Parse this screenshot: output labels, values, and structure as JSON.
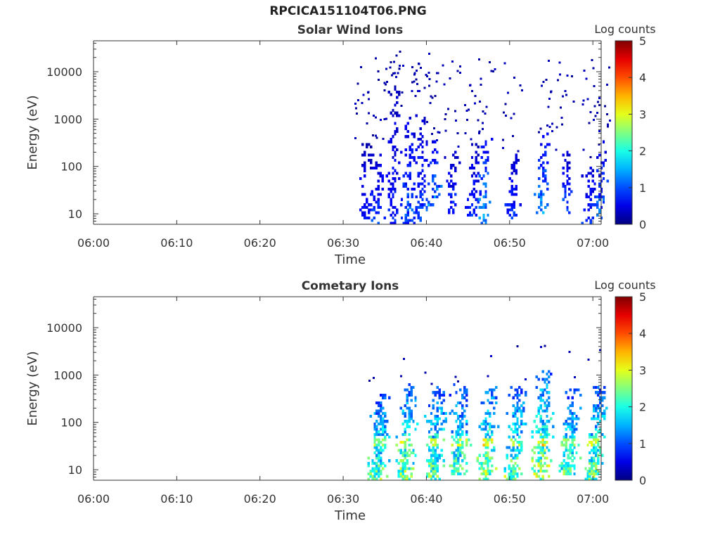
{
  "page_title": "RPCICA151104T06.PNG",
  "chart_data": [
    {
      "type": "heatmap",
      "title": "Solar Wind Ions",
      "xlabel": "Time",
      "ylabel": "Energy (eV)",
      "x_ticks": [
        "06:00",
        "06:10",
        "06:20",
        "06:30",
        "06:40",
        "06:50",
        "07:00"
      ],
      "x_range_min": [
        0,
        61
      ],
      "y_scale": "log",
      "y_ticks": [
        10,
        100,
        1000,
        10000
      ],
      "y_tick_labels": [
        "10",
        "100",
        "1000",
        "10000"
      ],
      "y_range": [
        6,
        45000
      ],
      "colorbar": {
        "label": "Log counts",
        "ticks": [
          0,
          1,
          2,
          3,
          4,
          5
        ],
        "range": [
          0,
          5
        ],
        "colormap": "jet"
      },
      "grid": false,
      "bursts": [
        {
          "t": 32.6,
          "e_lo": 8,
          "e_hi": 300,
          "peak": 0.7
        },
        {
          "t": 34.0,
          "e_lo": 6,
          "e_hi": 200,
          "peak": 1.0
        },
        {
          "t": 36.0,
          "e_lo": 6,
          "e_hi": 5000,
          "peak": 0.8
        },
        {
          "t": 37.8,
          "e_lo": 6,
          "e_hi": 1500,
          "peak": 1.1
        },
        {
          "t": 39.3,
          "e_lo": 6,
          "e_hi": 2000,
          "peak": 1.0
        },
        {
          "t": 40.8,
          "e_lo": 12,
          "e_hi": 350,
          "peak": 1.4
        },
        {
          "t": 43.0,
          "e_lo": 10,
          "e_hi": 200,
          "peak": 0.9
        },
        {
          "t": 45.5,
          "e_lo": 8,
          "e_hi": 300,
          "peak": 0.9
        },
        {
          "t": 46.9,
          "e_lo": 6,
          "e_hi": 400,
          "peak": 1.5
        },
        {
          "t": 50.3,
          "e_lo": 8,
          "e_hi": 200,
          "peak": 0.9
        },
        {
          "t": 53.8,
          "e_lo": 10,
          "e_hi": 500,
          "peak": 1.4
        },
        {
          "t": 56.7,
          "e_lo": 10,
          "e_hi": 200,
          "peak": 1.1
        },
        {
          "t": 59.5,
          "e_lo": 6,
          "e_hi": 150,
          "peak": 0.9
        },
        {
          "t": 60.8,
          "e_lo": 8,
          "e_hi": 400,
          "peak": 1.2
        }
      ]
    },
    {
      "type": "heatmap",
      "title": "Cometary Ions",
      "xlabel": "Time",
      "ylabel": "Energy (eV)",
      "x_ticks": [
        "06:00",
        "06:10",
        "06:20",
        "06:30",
        "06:40",
        "06:50",
        "07:00"
      ],
      "x_range_min": [
        0,
        61
      ],
      "y_scale": "log",
      "y_ticks": [
        10,
        100,
        1000,
        10000
      ],
      "y_tick_labels": [
        "10",
        "100",
        "1000",
        "10000"
      ],
      "y_range": [
        6,
        45000
      ],
      "colorbar": {
        "label": "Log counts",
        "ticks": [
          0,
          1,
          2,
          3,
          4,
          5
        ],
        "range": [
          0,
          5
        ],
        "colormap": "jet"
      },
      "grid": false,
      "bursts": [
        {
          "t": 34.2,
          "e_lo": 6,
          "e_hi": 400,
          "peak": 2.5
        },
        {
          "t": 37.6,
          "e_lo": 6,
          "e_hi": 650,
          "peak": 2.7
        },
        {
          "t": 41.0,
          "e_lo": 6,
          "e_hi": 600,
          "peak": 2.6
        },
        {
          "t": 44.0,
          "e_lo": 8,
          "e_hi": 700,
          "peak": 2.4
        },
        {
          "t": 47.3,
          "e_lo": 6,
          "e_hi": 600,
          "peak": 2.9
        },
        {
          "t": 50.6,
          "e_lo": 6,
          "e_hi": 600,
          "peak": 2.6
        },
        {
          "t": 53.9,
          "e_lo": 6,
          "e_hi": 1200,
          "peak": 2.9
        },
        {
          "t": 57.2,
          "e_lo": 8,
          "e_hi": 500,
          "peak": 2.4
        },
        {
          "t": 60.3,
          "e_lo": 6,
          "e_hi": 600,
          "peak": 2.6
        }
      ]
    }
  ]
}
